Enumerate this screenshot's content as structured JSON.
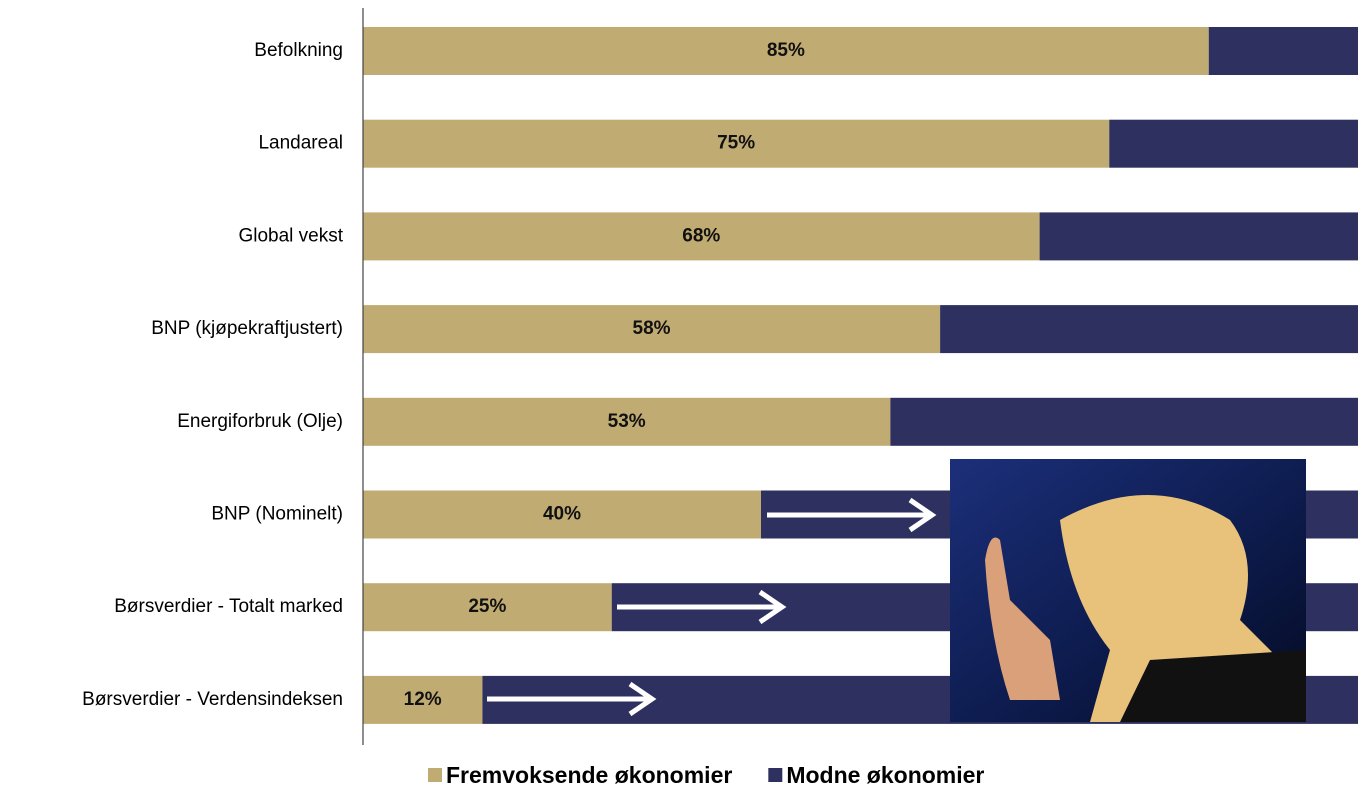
{
  "chart_data": {
    "type": "bar",
    "orientation": "horizontal",
    "stacked": true,
    "categories": [
      "Befolkning",
      "Landareal",
      "Global vekst",
      "BNP (kjøpekraftjustert)",
      "Energiforbruk (Olje)",
      "BNP (Nominelt)",
      "Børsverdier - Totalt marked",
      "Børsverdier - Verdensindeksen"
    ],
    "series": [
      {
        "name": "Fremvoksende økonomier",
        "color": "#c0ab72",
        "values": [
          85,
          75,
          68,
          58,
          53,
          40,
          25,
          12
        ],
        "value_labels": [
          "85%",
          "75%",
          "68%",
          "58%",
          "53%",
          "40%",
          "25%",
          "12%"
        ]
      },
      {
        "name": "Modne økonomier",
        "color": "#2e3160",
        "values": [
          15,
          25,
          32,
          42,
          47,
          60,
          75,
          88
        ]
      }
    ],
    "xlim": [
      0,
      100
    ],
    "legend": "bottom"
  }
}
